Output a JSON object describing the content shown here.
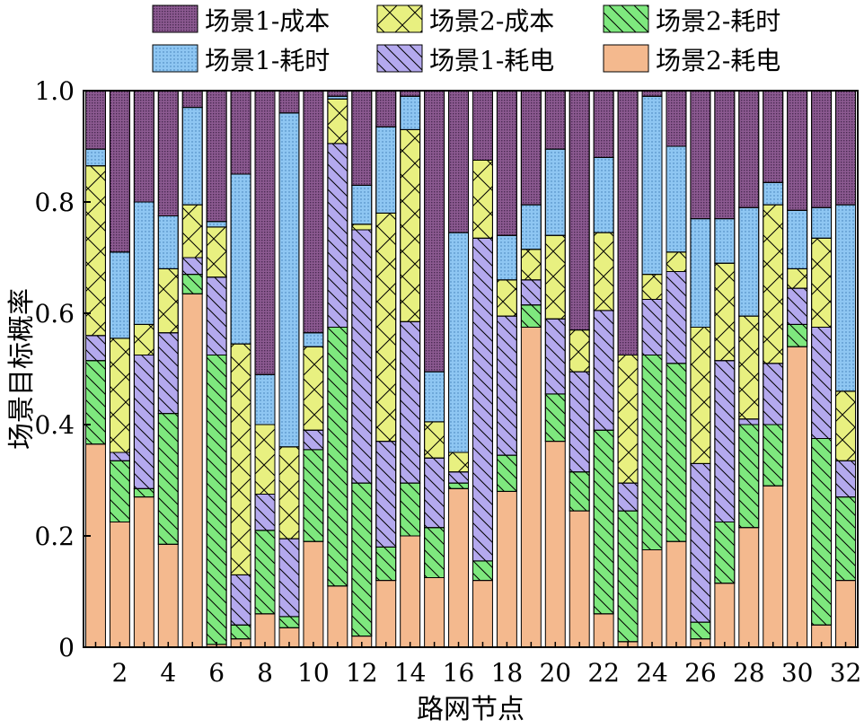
{
  "chart_data": {
    "type": "bar",
    "stacked": true,
    "xlabel": "路网节点",
    "ylabel": "场景目标概率",
    "ylim": [
      0,
      1.0
    ],
    "y_ticks": [
      "0",
      "0.2",
      "0.4",
      "0.6",
      "0.8",
      "1.0"
    ],
    "x_tick_labels": [
      "2",
      "4",
      "6",
      "8",
      "10",
      "12",
      "14",
      "16",
      "18",
      "20",
      "22",
      "24",
      "26",
      "28",
      "30",
      "32"
    ],
    "categories": [
      1,
      2,
      3,
      4,
      5,
      6,
      7,
      8,
      9,
      10,
      11,
      12,
      13,
      14,
      15,
      16,
      17,
      18,
      19,
      20,
      21,
      22,
      23,
      24,
      25,
      26,
      27,
      28,
      29,
      30,
      31,
      32
    ],
    "grid": false,
    "legend_position": "top",
    "series": [
      {
        "name": "场景2-耗电",
        "color": "#f4b98e",
        "pattern": "none",
        "values": [
          0.365,
          0.225,
          0.27,
          0.185,
          0.635,
          0.005,
          0.015,
          0.06,
          0.035,
          0.19,
          0.11,
          0.02,
          0.12,
          0.2,
          0.125,
          0.285,
          0.12,
          0.28,
          0.575,
          0.37,
          0.245,
          0.06,
          0.01,
          0.175,
          0.19,
          0.015,
          0.115,
          0.215,
          0.29,
          0.54,
          0.04,
          0.12
        ]
      },
      {
        "name": "场景2-耗时",
        "color": "#7ee87e",
        "pattern": "diag",
        "values": [
          0.15,
          0.11,
          0.015,
          0.235,
          0.035,
          0.52,
          0.025,
          0.15,
          0.02,
          0.165,
          0.465,
          0.275,
          0.06,
          0.095,
          0.09,
          0.01,
          0.035,
          0.065,
          0.04,
          0.085,
          0.07,
          0.33,
          0.235,
          0.35,
          0.32,
          0.03,
          0.11,
          0.185,
          0.11,
          0.04,
          0.335,
          0.15
        ]
      },
      {
        "name": "场景1-耗电",
        "color": "#b4a9ee",
        "pattern": "diag",
        "values": [
          0.045,
          0.015,
          0.24,
          0.145,
          0.03,
          0.14,
          0.09,
          0.065,
          0.14,
          0.035,
          0.33,
          0.455,
          0.19,
          0.29,
          0.125,
          0.02,
          0.58,
          0.25,
          0.045,
          0.135,
          0.18,
          0.215,
          0.05,
          0.1,
          0.165,
          0.285,
          0.29,
          0.01,
          0.11,
          0.065,
          0.2,
          0.065
        ]
      },
      {
        "name": "场景2-成本",
        "color": "#e8f080",
        "pattern": "cross",
        "values": [
          0.305,
          0.205,
          0.055,
          0.115,
          0.095,
          0.09,
          0.415,
          0.125,
          0.165,
          0.15,
          0.08,
          0.01,
          0.41,
          0.345,
          0.065,
          0.035,
          0.14,
          0.065,
          0.055,
          0.15,
          0.075,
          0.14,
          0.23,
          0.045,
          0.035,
          0.245,
          0.175,
          0.185,
          0.285,
          0.035,
          0.16,
          0.125
        ]
      },
      {
        "name": "场景1-耗时",
        "color": "#8ec6f2",
        "pattern": "dots",
        "values": [
          0.03,
          0.155,
          0.22,
          0.095,
          0.175,
          0.01,
          0.305,
          0.09,
          0.6,
          0.025,
          0.005,
          0.07,
          0.155,
          0.06,
          0.09,
          0.395,
          0,
          0.08,
          0.08,
          0.155,
          0,
          0.135,
          0,
          0.32,
          0.19,
          0.195,
          0.08,
          0.195,
          0.04,
          0.105,
          0.055,
          0.335
        ]
      },
      {
        "name": "场景1-成本",
        "color": "#8c5a91",
        "pattern": "dense",
        "values": [
          0.105,
          0.29,
          0.2,
          0.225,
          0.03,
          0.235,
          0.15,
          0.51,
          0.04,
          0.435,
          0.01,
          0.17,
          0.065,
          0.01,
          0.505,
          0.255,
          0.125,
          0.26,
          0.205,
          0.105,
          0.43,
          0.12,
          0.475,
          0.01,
          0.1,
          0.23,
          0.23,
          0.21,
          0.165,
          0.215,
          0.21,
          0.205
        ]
      }
    ]
  }
}
